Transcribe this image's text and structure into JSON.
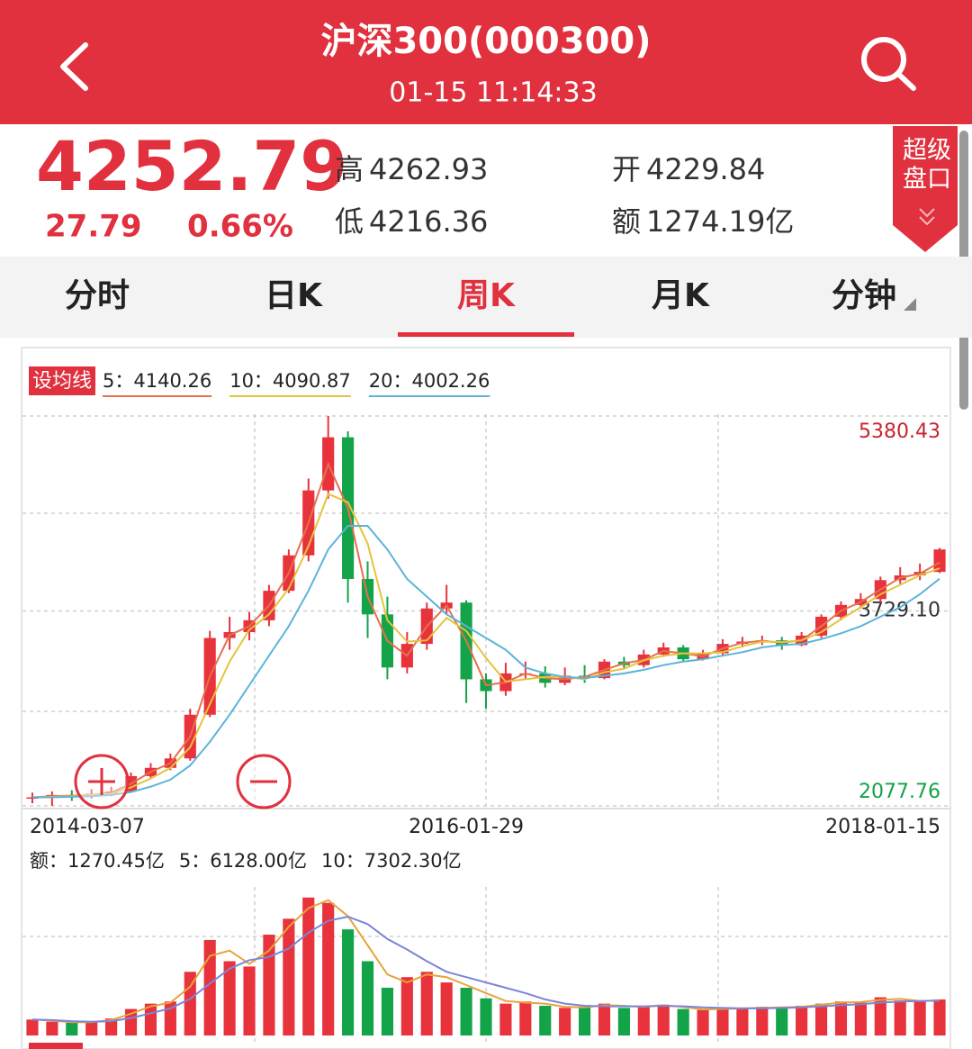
{
  "header": {
    "title": "沪深300(000300)",
    "time": "01-15 11:14:33"
  },
  "quote": {
    "price": "4252.79",
    "change": "27.79",
    "change_pct": "0.66%",
    "high_label": "高",
    "high": "4262.93",
    "low_label": "低",
    "low": "4216.36",
    "open_label": "开",
    "open": "4229.84",
    "amount_label": "额",
    "amount": "1274.19亿",
    "badge": [
      "超级",
      "盘口"
    ]
  },
  "tabs": {
    "items": [
      "分时",
      "日K",
      "周K",
      "月K",
      "分钟"
    ],
    "active": 2
  },
  "ma_button": "设均线",
  "chart_data": [
    {
      "type": "candlestick",
      "up_color": "#e8323c",
      "down_color": "#13a348",
      "grid": true,
      "categories": [
        "2014-03-07",
        null,
        null,
        null,
        null,
        null,
        null,
        null,
        null,
        null,
        null,
        null,
        null,
        null,
        null,
        null,
        null,
        null,
        null,
        null,
        null,
        null,
        "2016-01-29",
        null,
        null,
        null,
        null,
        null,
        null,
        null,
        null,
        null,
        null,
        null,
        null,
        null,
        null,
        null,
        null,
        null,
        null,
        null,
        null,
        null,
        null,
        null,
        "2018-01-15"
      ],
      "open": [
        2140,
        2150,
        2170,
        2160,
        2180,
        2200,
        2330,
        2400,
        2480,
        2850,
        3500,
        3550,
        3650,
        3900,
        4200,
        4750,
        5200,
        4000,
        3700,
        3250,
        3450,
        3750,
        3800,
        3150,
        3050,
        3200,
        3200,
        3120,
        3180,
        3160,
        3300,
        3270,
        3360,
        3420,
        3320,
        3370,
        3450,
        3470,
        3480,
        3440,
        3520,
        3680,
        3780,
        3830,
        3990,
        4030,
        4060
      ],
      "high": [
        2190,
        2200,
        2210,
        2220,
        2240,
        2360,
        2440,
        2520,
        2900,
        3560,
        3680,
        3720,
        3950,
        4250,
        4850,
        5380.43,
        5250,
        4150,
        3850,
        3550,
        3800,
        3950,
        3820,
        3200,
        3290,
        3300,
        3260,
        3250,
        3270,
        3320,
        3340,
        3400,
        3460,
        3440,
        3400,
        3490,
        3510,
        3520,
        3510,
        3550,
        3700,
        3810,
        3880,
        4020,
        4100,
        4130,
        4262.93
      ],
      "low": [
        2100,
        2077.76,
        2120,
        2140,
        2160,
        2190,
        2310,
        2380,
        2460,
        2830,
        3400,
        3480,
        3600,
        3880,
        4150,
        4680,
        3800,
        3500,
        3150,
        3200,
        3400,
        3700,
        2950,
        2900,
        3010,
        3150,
        3080,
        3100,
        3120,
        3150,
        3240,
        3250,
        3340,
        3300,
        3310,
        3350,
        3420,
        3440,
        3400,
        3430,
        3500,
        3650,
        3750,
        3800,
        3960,
        3990,
        4050
      ],
      "close": [
        2150,
        2170,
        2160,
        2180,
        2200,
        2330,
        2400,
        2480,
        2850,
        3500,
        3550,
        3650,
        3900,
        4200,
        4750,
        5200,
        4000,
        3700,
        3250,
        3450,
        3750,
        3800,
        3150,
        3050,
        3200,
        3200,
        3120,
        3180,
        3160,
        3300,
        3270,
        3360,
        3420,
        3320,
        3370,
        3450,
        3470,
        3480,
        3440,
        3520,
        3680,
        3780,
        3830,
        3990,
        4030,
        4060,
        4250
      ],
      "series": [
        {
          "name": "5：4140.26",
          "color": "#e5704f",
          "values": [
            2150,
            2160,
            2165,
            2170,
            2190,
            2265,
            2365,
            2440,
            2665,
            3175,
            3525,
            3600,
            3775,
            4050,
            4475,
            4975,
            4600,
            3850,
            3475,
            3350,
            3600,
            3775,
            3475,
            3100,
            3125,
            3200,
            3160,
            3150,
            3170,
            3230,
            3285,
            3315,
            3390,
            3370,
            3345,
            3410,
            3460,
            3475,
            3460,
            3480,
            3600,
            3730,
            3805,
            3910,
            4010,
            4045,
            4140.26
          ]
        },
        {
          "name": "10：4090.87",
          "color": "#e6c33c",
          "values": [
            2150,
            2155,
            2160,
            2170,
            2180,
            2235,
            2310,
            2400,
            2575,
            2940,
            3300,
            3570,
            3700,
            3920,
            4280,
            4720,
            4650,
            4300,
            3650,
            3470,
            3480,
            3670,
            3560,
            3330,
            3130,
            3150,
            3170,
            3170,
            3150,
            3210,
            3240,
            3310,
            3350,
            3370,
            3370,
            3380,
            3430,
            3470,
            3465,
            3480,
            3550,
            3660,
            3760,
            3870,
            3950,
            4030,
            4090.87
          ]
        },
        {
          "name": "20：4002.26",
          "color": "#5db3da",
          "values": [
            2150,
            2150,
            2155,
            2160,
            2170,
            2195,
            2240,
            2300,
            2420,
            2620,
            2850,
            3100,
            3350,
            3600,
            3900,
            4250,
            4450,
            4450,
            4250,
            4000,
            3850,
            3700,
            3600,
            3500,
            3400,
            3250,
            3200,
            3170,
            3160,
            3180,
            3200,
            3230,
            3270,
            3300,
            3320,
            3350,
            3380,
            3420,
            3440,
            3450,
            3490,
            3540,
            3600,
            3680,
            3760,
            3870,
            4002.26
          ]
        }
      ],
      "ylim": [
        2077.76,
        5380.43
      ],
      "yticks": [
        5380.43,
        {
          "value": 3729.1,
          "label": "3729.10"
        },
        2077.76
      ]
    },
    {
      "type": "bar",
      "ylim": [
        0,
        14000
      ],
      "series": [
        {
          "name": "额：1270.45亿",
          "type": "bar",
          "values": [
            1500,
            1300,
            1200,
            1300,
            1600,
            2500,
            3000,
            3200,
            6000,
            9000,
            7000,
            6500,
            9500,
            11000,
            13000,
            12500,
            10000,
            7000,
            4500,
            5500,
            6000,
            5000,
            4500,
            3500,
            3000,
            3200,
            2800,
            2600,
            2700,
            3000,
            2600,
            2800,
            2900,
            2500,
            2400,
            2600,
            2500,
            2700,
            2600,
            2800,
            3000,
            3200,
            3100,
            3600,
            3300,
            3200,
            3400
          ]
        },
        {
          "name": "5：6128.00亿",
          "type": "line",
          "color": "#e8a23c",
          "values": [
            1500,
            1400,
            1250,
            1250,
            1450,
            2050,
            2750,
            3100,
            4600,
            7500,
            8000,
            6750,
            8000,
            10250,
            12000,
            12750,
            11250,
            8500,
            5750,
            5000,
            5750,
            5500,
            4750,
            4000,
            3250,
            3100,
            3000,
            2700,
            2650,
            2850,
            2800,
            2700,
            2850,
            2700,
            2450,
            2500,
            2550,
            2600,
            2650,
            2700,
            2900,
            3100,
            3150,
            3350,
            3450,
            3250,
            3300
          ]
        },
        {
          "name": "10：7302.30亿",
          "type": "line",
          "color": "#7a86d8",
          "values": [
            1500,
            1450,
            1350,
            1300,
            1350,
            1650,
            2100,
            2550,
            3450,
            4900,
            6300,
            7100,
            7400,
            8200,
            9700,
            10800,
            11200,
            10500,
            9100,
            8100,
            7000,
            6000,
            5500,
            5000,
            4500,
            4000,
            3400,
            3000,
            2800,
            2750,
            2750,
            2750,
            2800,
            2750,
            2650,
            2600,
            2550,
            2550,
            2600,
            2650,
            2750,
            2850,
            2950,
            3100,
            3200,
            3250,
            3300
          ]
        }
      ]
    }
  ]
}
